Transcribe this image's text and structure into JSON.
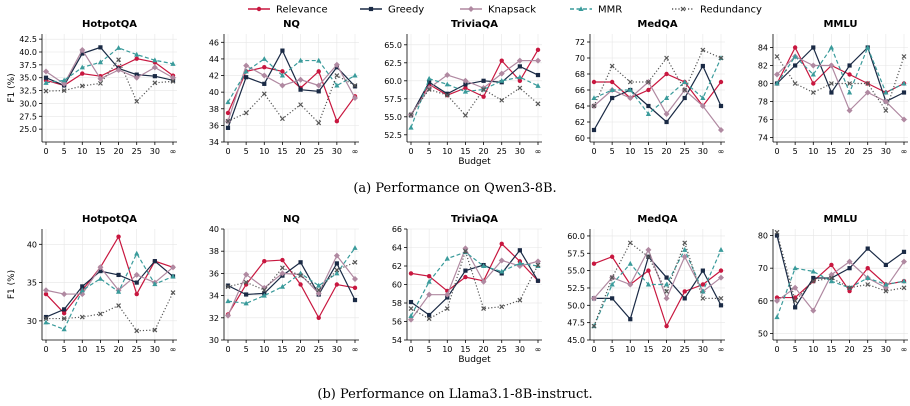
{
  "legend": [
    {
      "name": "Relevance",
      "color": "#c8173f",
      "marker": "circle",
      "dash": "solid"
    },
    {
      "name": "Greedy",
      "color": "#1a2a45",
      "marker": "square",
      "dash": "solid"
    },
    {
      "name": "Knapsack",
      "color": "#b089a1",
      "marker": "diamond",
      "dash": "solid"
    },
    {
      "name": "MMR",
      "color": "#3a9b9b",
      "marker": "triangle",
      "dash": "dashed"
    },
    {
      "name": "Redundancy",
      "color": "#555555",
      "marker": "x",
      "dash": "dotted"
    }
  ],
  "captions": [
    "(a) Performance on Qwen3-8B.",
    "(b) Performance on Llama3.1-8B-instruct."
  ],
  "chart_data": [
    {
      "type": "line",
      "row": 0,
      "title": "HotpotQA",
      "xlabel": "",
      "ylabel": "F1 (%)",
      "categories": [
        "0",
        "5",
        "10",
        "15",
        "20",
        "25",
        "30",
        "∞"
      ],
      "ylim": [
        22.5,
        43.5
      ],
      "yticks": [
        25.0,
        27.5,
        30.0,
        32.5,
        35.0,
        37.5,
        40.0,
        42.5
      ],
      "ytick_decimals": 1,
      "series": [
        {
          "name": "Relevance",
          "values": [
            34.5,
            33.5,
            35.8,
            35.3,
            37.0,
            38.7,
            38.0,
            35.4
          ]
        },
        {
          "name": "Greedy",
          "values": [
            35.0,
            33.5,
            39.7,
            40.9,
            36.8,
            35.6,
            35.3,
            34.5
          ]
        },
        {
          "name": "Knapsack",
          "values": [
            36.2,
            33.8,
            40.4,
            34.8,
            36.5,
            35.0,
            37.0,
            35.0
          ]
        },
        {
          "name": "MMR",
          "values": [
            34.0,
            34.5,
            37.0,
            38.0,
            40.8,
            39.5,
            38.4,
            37.7
          ]
        },
        {
          "name": "Redundancy",
          "values": [
            32.4,
            32.5,
            33.4,
            33.9,
            38.5,
            30.4,
            34.0,
            34.3
          ]
        }
      ]
    },
    {
      "type": "line",
      "row": 0,
      "title": "NQ",
      "xlabel": "",
      "ylabel": "",
      "categories": [
        "0",
        "5",
        "10",
        "15",
        "20",
        "25",
        "30",
        "∞"
      ],
      "ylim": [
        34,
        47
      ],
      "yticks": [
        34,
        36,
        38,
        40,
        42,
        44,
        46
      ],
      "ytick_decimals": 0,
      "series": [
        {
          "name": "Relevance",
          "values": [
            37.5,
            42.5,
            43.0,
            42.5,
            40.5,
            42.5,
            36.5,
            39.5
          ]
        },
        {
          "name": "Greedy",
          "values": [
            35.7,
            41.8,
            41.0,
            45.0,
            40.3,
            40.1,
            43.0,
            40.7
          ]
        },
        {
          "name": "Knapsack",
          "values": [
            36.5,
            43.2,
            42.0,
            40.8,
            41.5,
            40.8,
            43.3,
            39.3
          ]
        },
        {
          "name": "MMR",
          "values": [
            38.8,
            42.5,
            44.0,
            42.0,
            43.8,
            43.8,
            40.8,
            42.0
          ]
        },
        {
          "name": "Redundancy",
          "values": [
            36.5,
            37.5,
            39.8,
            36.8,
            38.5,
            36.3,
            42.0,
            40.8
          ]
        }
      ]
    },
    {
      "type": "line",
      "row": 0,
      "title": "TriviaQA",
      "xlabel": "Budget",
      "ylabel": "",
      "categories": [
        "0",
        "5",
        "10",
        "15",
        "20",
        "25",
        "30",
        "∞"
      ],
      "ylim": [
        51.5,
        66.5
      ],
      "yticks": [
        52.5,
        55.0,
        57.5,
        60.0,
        62.5,
        65.0
      ],
      "ytick_decimals": 1,
      "series": [
        {
          "name": "Relevance",
          "values": [
            55.2,
            59.5,
            58.0,
            59.0,
            57.8,
            62.8,
            60.0,
            64.3
          ]
        },
        {
          "name": "Greedy",
          "values": [
            55.2,
            59.8,
            58.2,
            59.5,
            60.0,
            59.8,
            62.0,
            60.8
          ]
        },
        {
          "name": "Knapsack",
          "values": [
            55.3,
            59.0,
            60.8,
            60.0,
            59.0,
            61.0,
            62.8,
            62.8
          ]
        },
        {
          "name": "MMR",
          "values": [
            53.5,
            60.3,
            59.5,
            58.5,
            58.8,
            60.0,
            60.5,
            59.3
          ]
        },
        {
          "name": "Redundancy",
          "values": [
            55.3,
            58.8,
            58.0,
            55.2,
            58.8,
            57.3,
            59.0,
            56.8
          ]
        }
      ]
    },
    {
      "type": "line",
      "row": 0,
      "title": "MedQA",
      "xlabel": "",
      "ylabel": "",
      "categories": [
        "0",
        "5",
        "10",
        "15",
        "20",
        "25",
        "30",
        "∞"
      ],
      "ylim": [
        59.5,
        73
      ],
      "yticks": [
        60,
        62,
        64,
        66,
        68,
        70,
        72
      ],
      "ytick_decimals": 0,
      "series": [
        {
          "name": "Relevance",
          "values": [
            67,
            67,
            65,
            66,
            68,
            67,
            64,
            67
          ]
        },
        {
          "name": "Greedy",
          "values": [
            61,
            65,
            66,
            64,
            62,
            65,
            69,
            64
          ]
        },
        {
          "name": "Knapsack",
          "values": [
            64,
            66,
            65,
            67,
            63,
            66,
            64,
            61
          ]
        },
        {
          "name": "MMR",
          "values": [
            65,
            66,
            66,
            63,
            65,
            67,
            65,
            70
          ]
        },
        {
          "name": "Redundancy",
          "values": [
            64,
            69,
            67,
            67,
            70,
            66,
            71,
            70
          ]
        }
      ]
    },
    {
      "type": "line",
      "row": 0,
      "title": "MMLU",
      "xlabel": "",
      "ylabel": "",
      "categories": [
        "0",
        "5",
        "10",
        "15",
        "20",
        "25",
        "30",
        "∞"
      ],
      "ylim": [
        73.5,
        85.5
      ],
      "yticks": [
        74,
        76,
        78,
        80,
        82,
        84
      ],
      "ytick_decimals": 0,
      "series": [
        {
          "name": "Relevance",
          "values": [
            80,
            84,
            80,
            82,
            81,
            80,
            79,
            80
          ]
        },
        {
          "name": "Greedy",
          "values": [
            80,
            82,
            84,
            79,
            82,
            84,
            78,
            79
          ]
        },
        {
          "name": "Knapsack",
          "values": [
            81,
            83,
            82,
            82,
            77,
            79,
            78,
            76
          ]
        },
        {
          "name": "MMR",
          "values": [
            80,
            83,
            81,
            84,
            79,
            84,
            79,
            80
          ]
        },
        {
          "name": "Redundancy",
          "values": [
            83,
            80,
            79,
            80,
            80,
            80,
            77,
            83
          ]
        }
      ]
    },
    {
      "type": "line",
      "row": 1,
      "title": "HotpotQA",
      "xlabel": "",
      "ylabel": "F1 (%)",
      "categories": [
        "0",
        "5",
        "10",
        "15",
        "20",
        "25",
        "30",
        "∞"
      ],
      "ylim": [
        27.5,
        42
      ],
      "yticks": [
        30,
        35,
        40
      ],
      "ytick_decimals": 0,
      "series": [
        {
          "name": "Relevance",
          "values": [
            33.5,
            31.0,
            34.0,
            37.0,
            41.0,
            33.5,
            37.8,
            37.0
          ]
        },
        {
          "name": "Greedy",
          "values": [
            30.5,
            31.5,
            34.5,
            36.5,
            36.0,
            35.0,
            37.8,
            35.8
          ]
        },
        {
          "name": "Knapsack",
          "values": [
            34.0,
            33.5,
            33.5,
            37.0,
            34.0,
            36.0,
            35.0,
            37.0
          ]
        },
        {
          "name": "MMR",
          "values": [
            29.8,
            28.9,
            34.0,
            35.5,
            33.8,
            38.8,
            34.8,
            35.8
          ]
        },
        {
          "name": "Redundancy",
          "values": [
            30.3,
            30.3,
            30.5,
            30.9,
            32.0,
            28.7,
            28.8,
            33.7
          ]
        }
      ]
    },
    {
      "type": "line",
      "row": 1,
      "title": "NQ",
      "xlabel": "",
      "ylabel": "",
      "categories": [
        "0",
        "5",
        "10",
        "15",
        "20",
        "25",
        "30",
        "∞"
      ],
      "ylim": [
        30,
        40
      ],
      "yticks": [
        30,
        32,
        34,
        36,
        38,
        40
      ],
      "ytick_decimals": 0,
      "series": [
        {
          "name": "Relevance",
          "values": [
            32.3,
            35.0,
            37.1,
            37.2,
            35.0,
            32.0,
            35.0,
            34.7
          ]
        },
        {
          "name": "Greedy",
          "values": [
            34.9,
            34.1,
            34.2,
            35.8,
            37.0,
            34.1,
            36.9,
            33.6
          ]
        },
        {
          "name": "Knapsack",
          "values": [
            32.2,
            35.9,
            34.7,
            36.0,
            35.9,
            34.2,
            37.6,
            35.5
          ]
        },
        {
          "name": "MMR",
          "values": [
            33.5,
            33.3,
            34.0,
            34.8,
            36.0,
            34.9,
            36.0,
            38.3
          ]
        },
        {
          "name": "Redundancy",
          "values": [
            34.8,
            35.2,
            34.5,
            36.5,
            35.8,
            34.5,
            36.3,
            37.0
          ]
        }
      ]
    },
    {
      "type": "line",
      "row": 1,
      "title": "TriviaQA",
      "xlabel": "Budget",
      "ylabel": "",
      "categories": [
        "0",
        "5",
        "10",
        "15",
        "20",
        "25",
        "30",
        "∞"
      ],
      "ylim": [
        54,
        66
      ],
      "yticks": [
        54,
        56,
        58,
        60,
        62,
        64,
        66
      ],
      "ytick_decimals": 0,
      "series": [
        {
          "name": "Relevance",
          "values": [
            61.2,
            60.9,
            59.3,
            60.8,
            60.4,
            64.4,
            62.5,
            60.4
          ]
        },
        {
          "name": "Greedy",
          "values": [
            58.1,
            56.7,
            58.6,
            61.5,
            62.1,
            61.2,
            63.7,
            60.4
          ]
        },
        {
          "name": "Knapsack",
          "values": [
            56.2,
            58.9,
            58.9,
            63.9,
            60.3,
            62.6,
            62.0,
            62.5
          ]
        },
        {
          "name": "MMR",
          "values": [
            56.6,
            60.3,
            62.8,
            63.5,
            62.0,
            61.4,
            62.3,
            62.0
          ]
        },
        {
          "name": "Redundancy",
          "values": [
            57.4,
            56.3,
            57.4,
            63.6,
            57.4,
            57.6,
            58.3,
            62.1
          ]
        }
      ]
    },
    {
      "type": "line",
      "row": 1,
      "title": "MedQA",
      "xlabel": "",
      "ylabel": "",
      "categories": [
        "0",
        "5",
        "10",
        "15",
        "20",
        "25",
        "30",
        "∞"
      ],
      "ylim": [
        45,
        61
      ],
      "yticks": [
        45.0,
        47.5,
        50.0,
        52.5,
        55.0,
        57.5,
        60.0
      ],
      "ytick_decimals": 1,
      "series": [
        {
          "name": "Relevance",
          "values": [
            56.0,
            57.0,
            53.0,
            55.0,
            47.0,
            52.0,
            53.0,
            55.0
          ]
        },
        {
          "name": "Greedy",
          "values": [
            51.0,
            51.0,
            48.0,
            57.0,
            54.0,
            51.0,
            55.0,
            50.0
          ]
        },
        {
          "name": "Knapsack",
          "values": [
            51.0,
            54.0,
            53.0,
            58.0,
            51.0,
            57.0,
            52.0,
            54.0
          ]
        },
        {
          "name": "MMR",
          "values": [
            47.0,
            53.0,
            56.0,
            53.0,
            53.0,
            58.0,
            52.0,
            58.0
          ]
        },
        {
          "name": "Redundancy",
          "values": [
            47.0,
            54.0,
            59.0,
            57.0,
            52.0,
            59.0,
            51.0,
            51.0
          ]
        }
      ]
    },
    {
      "type": "line",
      "row": 1,
      "title": "MMLU",
      "xlabel": "",
      "ylabel": "",
      "categories": [
        "0",
        "5",
        "10",
        "15",
        "20",
        "25",
        "30",
        "∞"
      ],
      "ylim": [
        48,
        82
      ],
      "yticks": [
        50,
        60,
        70,
        80
      ],
      "ytick_decimals": 0,
      "series": [
        {
          "name": "Relevance",
          "values": [
            61,
            61,
            66,
            71,
            63,
            70,
            65,
            66
          ]
        },
        {
          "name": "Greedy",
          "values": [
            80,
            58,
            67,
            67,
            70,
            76,
            71,
            75
          ]
        },
        {
          "name": "Knapsack",
          "values": [
            60,
            64,
            57,
            68,
            72,
            67,
            64,
            72
          ]
        },
        {
          "name": "MMR",
          "values": [
            55,
            70,
            69,
            66,
            64,
            67,
            65,
            66
          ]
        },
        {
          "name": "Redundancy",
          "values": [
            81,
            60,
            66,
            67,
            64,
            65,
            63,
            64
          ]
        }
      ]
    }
  ]
}
